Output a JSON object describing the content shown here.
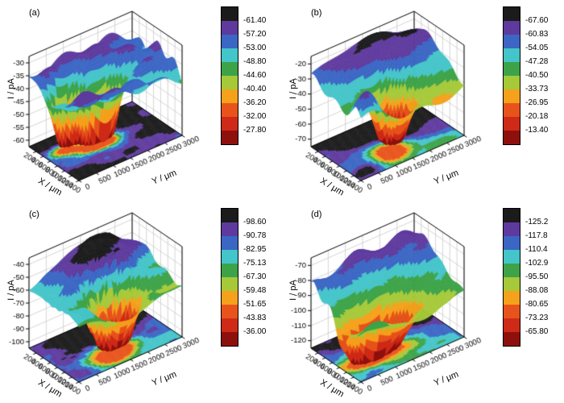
{
  "colorbar_colors": [
    "#1b1b1b",
    "#5e3a9e",
    "#3b66c4",
    "#44c5c9",
    "#3da348",
    "#a6c939",
    "#f5a11c",
    "#e8531b",
    "#cf2a17",
    "#8e100d"
  ],
  "chart_data": [
    {
      "id": "a",
      "type": "surface3d",
      "panel_label": "(a)",
      "x_axis": {
        "label": "X / μm",
        "ticks": [
          200,
          400,
          600,
          800,
          1000,
          1200,
          1400
        ],
        "range": [
          0,
          1400
        ]
      },
      "y_axis": {
        "label": "Y / μm",
        "ticks": [
          0,
          500,
          1000,
          1500,
          2000,
          2500,
          3000
        ],
        "range": [
          0,
          3000
        ]
      },
      "z_axis": {
        "label": "I / pA",
        "ticks": [
          -30,
          -35,
          -40,
          -45,
          -50,
          -55,
          -60
        ]
      },
      "colorbar_levels": [
        "-61.40",
        "-57.20",
        "-53.00",
        "-48.80",
        "-44.60",
        "-40.40",
        "-36.20",
        "-32.00",
        "-27.80"
      ],
      "z_min": -61.4,
      "z_max": -27.8,
      "surface_hint": "high red plateau with jagged ridges and a deep narrow diagonal valley near the center; contour projection on floor shows blue minima spots"
    },
    {
      "id": "b",
      "type": "surface3d",
      "panel_label": "(b)",
      "x_axis": {
        "label": "X / μm",
        "ticks": [
          200,
          400,
          600,
          800,
          1000,
          1200,
          1400
        ],
        "range": [
          0,
          1400
        ]
      },
      "y_axis": {
        "label": "Y / μm",
        "ticks": [
          0,
          500,
          1000,
          1500,
          2000,
          2500,
          3000
        ],
        "range": [
          0,
          3000
        ]
      },
      "z_axis": {
        "label": "I / pA",
        "ticks": [
          -20,
          -30,
          -40,
          -50,
          -60,
          -70
        ]
      },
      "colorbar_levels": [
        "-67.60",
        "-60.83",
        "-54.05",
        "-47.28",
        "-40.50",
        "-33.73",
        "-26.95",
        "-20.18",
        "-13.40"
      ],
      "z_min": -67.6,
      "z_max": -13.4,
      "surface_hint": "broad red dome at back sloping down to a deep blue pit near the front-right; small red bump at front-left corner"
    },
    {
      "id": "c",
      "type": "surface3d",
      "panel_label": "(c)",
      "x_axis": {
        "label": "X / μm",
        "ticks": [
          200,
          400,
          600,
          800,
          1000,
          1200,
          1400
        ],
        "range": [
          0,
          1400
        ]
      },
      "y_axis": {
        "label": "Y / μm",
        "ticks": [
          0,
          500,
          1000,
          1500,
          2000,
          2500,
          3000
        ],
        "range": [
          0,
          3000
        ]
      },
      "z_axis": {
        "label": "I / pA",
        "ticks": [
          -40,
          -50,
          -60,
          -70,
          -80,
          -90,
          -100
        ]
      },
      "colorbar_levels": [
        "-98.60",
        "-90.78",
        "-82.95",
        "-75.13",
        "-67.30",
        "-59.48",
        "-51.65",
        "-43.83",
        "-36.00"
      ],
      "z_min": -98.6,
      "z_max": -36.0,
      "surface_hint": "large red mountain at back-center with needle-like spikes, deep green/blue pit toward the front-center; concentric contour rings on floor"
    },
    {
      "id": "d",
      "type": "surface3d",
      "panel_label": "(d)",
      "x_axis": {
        "label": "X / μm",
        "ticks": [
          200,
          400,
          600,
          800,
          1000,
          1200,
          1400
        ],
        "range": [
          0,
          1400
        ]
      },
      "y_axis": {
        "label": "Y / μm",
        "ticks": [
          0,
          500,
          1000,
          1500,
          2000,
          2500,
          3000
        ],
        "range": [
          0,
          3000
        ]
      },
      "z_axis": {
        "label": "I / pA",
        "ticks": [
          -70,
          -80,
          -90,
          -100,
          -110,
          -120
        ]
      },
      "colorbar_levels": [
        "-125.2",
        "-117.8",
        "-110.4",
        "-102.9",
        "-95.50",
        "-88.08",
        "-80.65",
        "-73.23",
        "-65.80"
      ],
      "z_min": -125.2,
      "z_max": -65.8,
      "surface_hint": "high red ridge along the back edge, terraced orange/green slope, deep blue trench near the front-center-left"
    }
  ]
}
